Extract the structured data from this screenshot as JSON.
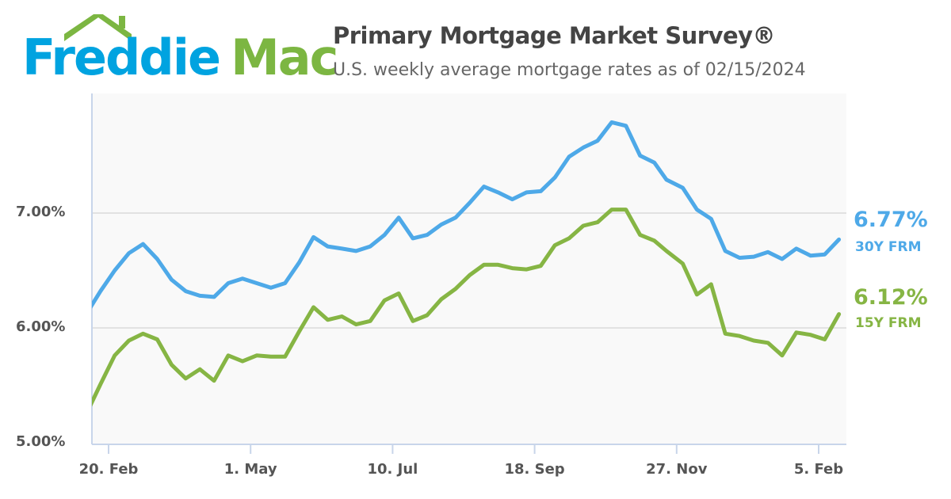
{
  "logo": {
    "part1": "Freddie",
    "part2": "Mac"
  },
  "header": {
    "title": "Primary Mortgage Market Survey®",
    "subtitle": "U.S. weekly average mortgage rates as of 02/15/2024"
  },
  "colors": {
    "series30": "#4ea9e8",
    "series15": "#86b544",
    "grid": "#e2e2e2",
    "axis": "#c8d5ea",
    "plot_bg": "#f9f9f9"
  },
  "chart_data": {
    "type": "line",
    "title": "Primary Mortgage Market Survey®",
    "subtitle": "U.S. weekly average mortgage rates as of 02/15/2024",
    "xlabel": "",
    "ylabel": "",
    "ylim": [
      5.0,
      8.0
    ],
    "yticks": [
      {
        "value": 5.0,
        "label": "5.00%"
      },
      {
        "value": 6.0,
        "label": "6.00%"
      },
      {
        "value": 7.0,
        "label": "7.00%"
      }
    ],
    "xticks": [
      {
        "date": "2023-02-20",
        "label": "20. Feb"
      },
      {
        "date": "2023-05-01",
        "label": "1. May"
      },
      {
        "date": "2023-07-10",
        "label": "10. Jul"
      },
      {
        "date": "2023-09-18",
        "label": "18. Sep"
      },
      {
        "date": "2023-11-27",
        "label": "27. Nov"
      },
      {
        "date": "2024-02-05",
        "label": "5. Feb"
      }
    ],
    "xlim": [
      "2023-02-12",
      "2024-02-18"
    ],
    "grid": true,
    "x": [
      "2023-02-09",
      "2023-02-16",
      "2023-02-23",
      "2023-03-02",
      "2023-03-09",
      "2023-03-16",
      "2023-03-23",
      "2023-03-30",
      "2023-04-06",
      "2023-04-13",
      "2023-04-20",
      "2023-04-27",
      "2023-05-04",
      "2023-05-11",
      "2023-05-18",
      "2023-05-25",
      "2023-06-01",
      "2023-06-08",
      "2023-06-15",
      "2023-06-22",
      "2023-06-29",
      "2023-07-06",
      "2023-07-13",
      "2023-07-20",
      "2023-07-27",
      "2023-08-03",
      "2023-08-10",
      "2023-08-17",
      "2023-08-24",
      "2023-08-31",
      "2023-09-07",
      "2023-09-14",
      "2023-09-21",
      "2023-09-28",
      "2023-10-05",
      "2023-10-12",
      "2023-10-19",
      "2023-10-26",
      "2023-11-02",
      "2023-11-09",
      "2023-11-16",
      "2023-11-22",
      "2023-11-30",
      "2023-12-07",
      "2023-12-14",
      "2023-12-21",
      "2023-12-28",
      "2024-01-04",
      "2024-01-11",
      "2024-01-18",
      "2024-01-25",
      "2024-02-01",
      "2024-02-08",
      "2024-02-15"
    ],
    "series": [
      {
        "name": "30Y FRM",
        "latest": "6.77%",
        "values": [
          6.12,
          6.32,
          6.5,
          6.65,
          6.73,
          6.6,
          6.42,
          6.32,
          6.28,
          6.27,
          6.39,
          6.43,
          6.39,
          6.35,
          6.39,
          6.57,
          6.79,
          6.71,
          6.69,
          6.67,
          6.71,
          6.81,
          6.96,
          6.78,
          6.81,
          6.9,
          6.96,
          7.09,
          7.23,
          7.18,
          7.12,
          7.18,
          7.19,
          7.31,
          7.49,
          7.57,
          7.63,
          7.79,
          7.76,
          7.5,
          7.44,
          7.29,
          7.22,
          7.03,
          6.95,
          6.67,
          6.61,
          6.62,
          6.66,
          6.6,
          6.69,
          6.63,
          6.64,
          6.77
        ]
      },
      {
        "name": "15Y FRM",
        "latest": "6.12%",
        "values": [
          5.25,
          5.51,
          5.76,
          5.89,
          5.95,
          5.9,
          5.68,
          5.56,
          5.64,
          5.54,
          5.76,
          5.71,
          5.76,
          5.75,
          5.75,
          5.97,
          6.18,
          6.07,
          6.1,
          6.03,
          6.06,
          6.24,
          6.3,
          6.06,
          6.11,
          6.25,
          6.34,
          6.46,
          6.55,
          6.55,
          6.52,
          6.51,
          6.54,
          6.72,
          6.78,
          6.89,
          6.92,
          7.03,
          7.03,
          6.81,
          6.76,
          6.67,
          6.56,
          6.29,
          6.38,
          5.95,
          5.93,
          5.89,
          5.87,
          5.76,
          5.96,
          5.94,
          5.9,
          6.12
        ]
      }
    ]
  }
}
